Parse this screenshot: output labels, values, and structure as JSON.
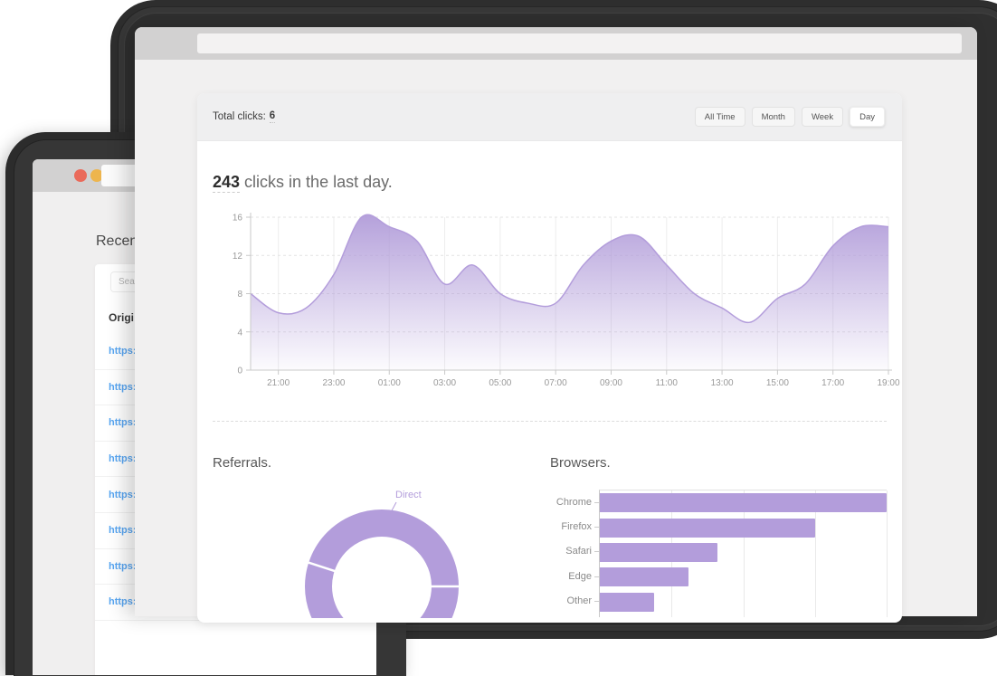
{
  "front_window": {
    "toolbar": {
      "traffic_lights": [
        "#e2604f",
        "#dfa43e",
        "#7fc14a"
      ]
    },
    "card": {
      "header": {
        "total_clicks_label": "Total clicks:",
        "total_clicks_value": "6",
        "filters": [
          "All Time",
          "Month",
          "Week",
          "Day"
        ],
        "active_filter": "Day"
      },
      "summary": {
        "count": "243",
        "rest": " clicks in the last day."
      },
      "sections": {
        "referrals_title": "Referrals.",
        "browsers_title": "Browsers."
      }
    },
    "accent_color": "#b39ddb"
  },
  "back_window": {
    "toolbar": {
      "traffic_lights": [
        "#ea6a5a",
        "#edb54e",
        "#8bd04e"
      ]
    },
    "heading_visible": "Recen",
    "search_placeholder_visible": "Sear",
    "table": {
      "header_visible": "Origi",
      "rows_visible": [
        "https:",
        "https:",
        "https:",
        "https:",
        "https:",
        "https:",
        "https:",
        "https:"
      ],
      "link_color": "#58a6f2"
    }
  },
  "chart_data": [
    {
      "type": "area",
      "title": "243 clicks in the last day.",
      "x_start_hour": "20:00",
      "x_interval_hours": 1,
      "values": [
        8,
        6,
        6.5,
        10,
        16,
        15,
        13.5,
        9,
        11,
        8,
        7,
        7,
        11,
        13.5,
        14,
        11,
        8,
        6.5,
        5,
        7.5,
        9,
        13,
        15,
        15
      ],
      "xticks": [
        "21:00",
        "23:00",
        "01:00",
        "03:00",
        "05:00",
        "07:00",
        "09:00",
        "11:00",
        "13:00",
        "15:00",
        "17:00",
        "19:00"
      ],
      "xtick_first_index": 1,
      "xtick_step": 2,
      "yticks": [
        0,
        4,
        8,
        12,
        16
      ],
      "ylim": [
        0,
        16
      ],
      "grid": true,
      "line_color": "#b39ddb",
      "fill_gradient": [
        "rgba(177,156,217,0.95)",
        "rgba(177,156,217,0.04)"
      ]
    },
    {
      "type": "donut",
      "section": "Referrals.",
      "segments": [
        {
          "label": "Direct",
          "start_deg": 288,
          "end_deg": 90
        }
      ],
      "divider_angles_deg": [
        90,
        288
      ],
      "color": "#b39ddb",
      "label_color": "#b39ddb"
    },
    {
      "type": "bar",
      "section": "Browsers.",
      "orientation": "horizontal",
      "categories": [
        "Chrome",
        "Firefox",
        "Safari",
        "Edge",
        "Other"
      ],
      "values_pct_of_max": [
        100,
        75,
        41,
        31,
        19
      ],
      "color": "#b39ddb",
      "gridline_count": 4
    }
  ]
}
